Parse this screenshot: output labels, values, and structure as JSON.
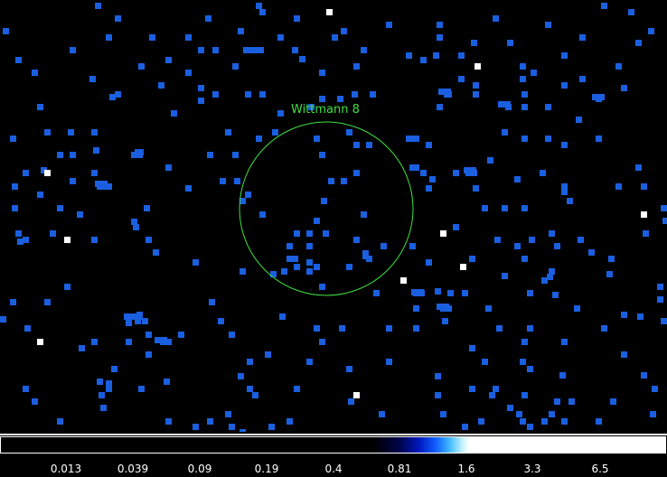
{
  "source": {
    "name": "Wittmann 8",
    "region_color": "#40e040"
  },
  "colors": {
    "background": "#000000",
    "count_pixel": "#1a5fe0",
    "bright_pixel": "#ffffff"
  },
  "colorbar": {
    "tick_labels": [
      "0.013",
      "0.039",
      "0.09",
      "0.19",
      "0.4",
      "0.81",
      "1.6",
      "3.3",
      "6.5"
    ]
  }
}
